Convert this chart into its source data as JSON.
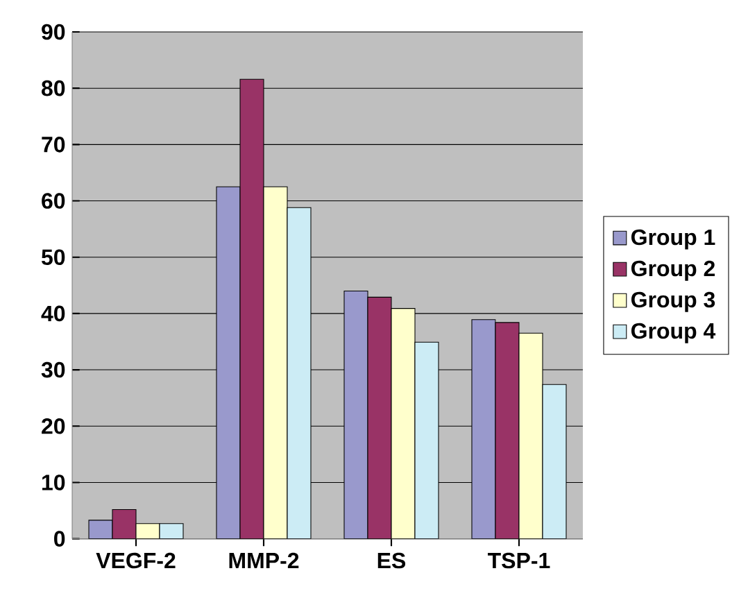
{
  "chart_data": {
    "type": "bar",
    "categories": [
      "VEGF-2",
      "MMP-2",
      "ES",
      "TSP-1"
    ],
    "series": [
      {
        "name": "Group 1",
        "color": "#9999cc",
        "values": [
          3.3,
          62.5,
          44,
          38.9
        ]
      },
      {
        "name": "Group 2",
        "color": "#993366",
        "values": [
          5.2,
          81.6,
          42.9,
          38.4
        ]
      },
      {
        "name": "Group 3",
        "color": "#ffffcc",
        "values": [
          2.7,
          62.5,
          40.9,
          36.5
        ]
      },
      {
        "name": "Group 4",
        "color": "#ccecf5",
        "values": [
          2.7,
          58.8,
          34.9,
          27.4
        ]
      }
    ],
    "ylim": [
      0,
      90
    ],
    "yticks": [
      0,
      10,
      20,
      30,
      40,
      50,
      60,
      70,
      80,
      90
    ],
    "grid": "y",
    "legend": "right"
  }
}
